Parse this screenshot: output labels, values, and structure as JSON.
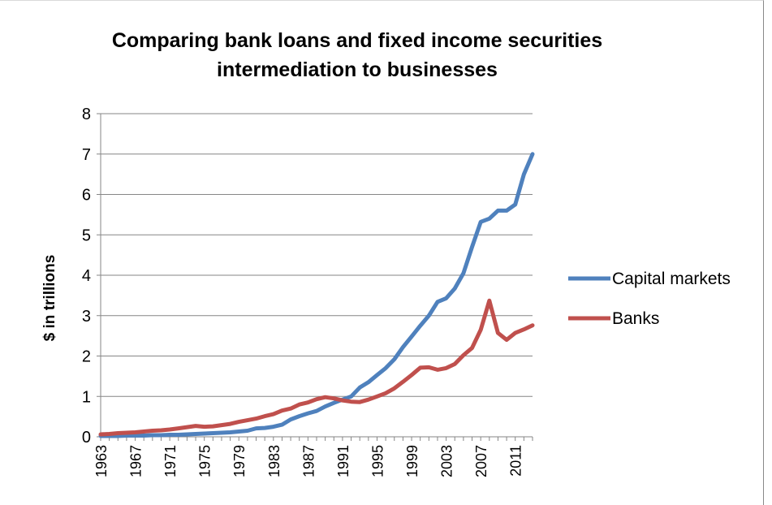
{
  "chart_data": {
    "type": "line",
    "title_line1": "Comparing bank loans and fixed income securities",
    "title_line2": "intermediation to businesses",
    "xlabel": "",
    "ylabel": "$ in trillions",
    "ylim": [
      0,
      8
    ],
    "yticks": [
      "0",
      "1",
      "2",
      "3",
      "4",
      "5",
      "6",
      "7",
      "8"
    ],
    "xticks": [
      "1963",
      "1967",
      "1971",
      "1975",
      "1979",
      "1983",
      "1987",
      "1991",
      "1995",
      "1999",
      "2003",
      "2007",
      "2011"
    ],
    "grid": "horizontal",
    "legend_position": "right",
    "x": [
      1963,
      1964,
      1965,
      1966,
      1967,
      1968,
      1969,
      1970,
      1971,
      1972,
      1973,
      1974,
      1975,
      1976,
      1977,
      1978,
      1979,
      1980,
      1981,
      1982,
      1983,
      1984,
      1985,
      1986,
      1987,
      1988,
      1989,
      1990,
      1991,
      1992,
      1993,
      1994,
      1995,
      1996,
      1997,
      1998,
      1999,
      2000,
      2001,
      2002,
      2003,
      2004,
      2005,
      2006,
      2007,
      2008,
      2009,
      2010,
      2011,
      2012,
      2013
    ],
    "series": [
      {
        "name": "Capital markets",
        "color": "#4f81bd",
        "values": [
          0.02,
          0.02,
          0.02,
          0.03,
          0.03,
          0.03,
          0.04,
          0.04,
          0.05,
          0.05,
          0.06,
          0.07,
          0.08,
          0.09,
          0.1,
          0.11,
          0.13,
          0.15,
          0.21,
          0.22,
          0.25,
          0.3,
          0.43,
          0.51,
          0.58,
          0.64,
          0.75,
          0.84,
          0.92,
          1.0,
          1.22,
          1.35,
          1.53,
          1.7,
          1.92,
          2.22,
          2.48,
          2.75,
          3.0,
          3.34,
          3.43,
          3.67,
          4.05,
          4.7,
          5.32,
          5.4,
          5.6,
          5.6,
          5.75,
          6.5,
          7.0
        ]
      },
      {
        "name": "Banks",
        "color": "#c0504d",
        "values": [
          0.06,
          0.07,
          0.09,
          0.1,
          0.11,
          0.13,
          0.15,
          0.16,
          0.18,
          0.21,
          0.24,
          0.27,
          0.25,
          0.26,
          0.29,
          0.32,
          0.37,
          0.41,
          0.45,
          0.51,
          0.56,
          0.65,
          0.7,
          0.8,
          0.85,
          0.93,
          0.98,
          0.95,
          0.9,
          0.87,
          0.86,
          0.92,
          1.0,
          1.08,
          1.2,
          1.36,
          1.53,
          1.71,
          1.72,
          1.66,
          1.7,
          1.8,
          2.02,
          2.2,
          2.65,
          3.37,
          2.57,
          2.4,
          2.57,
          2.66,
          2.76
        ]
      }
    ]
  }
}
